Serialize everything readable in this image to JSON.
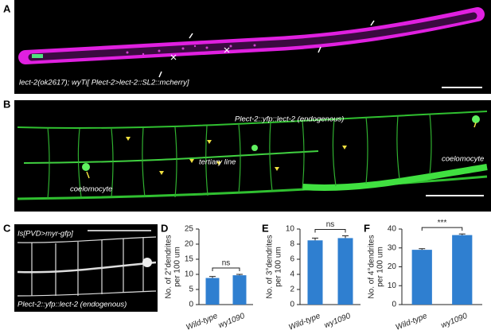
{
  "panels": {
    "A": {
      "label": "A",
      "caption": "lect-2(ok2617); wyTi[ Plect-2>lect-2::SL2::mcherry]"
    },
    "B": {
      "label": "B",
      "caption": "Plect-2::yfp::lect-2 (endogenous)",
      "annotations": [
        "tertiary line",
        "coelomocyte",
        "coelomocyte"
      ]
    },
    "C": {
      "label": "C",
      "header": "Is[PVD>myr-gfp]",
      "caption": "Plect-2::yfp::lect-2 (endogenous)"
    }
  },
  "chart_data": [
    {
      "type": "bar",
      "label": "D",
      "y_label": [
        "No. of 2°dendrites",
        "per 100 um"
      ],
      "categories": [
        "Wild-type",
        "wy1090"
      ],
      "values": [
        8.8,
        9.7
      ],
      "errors": [
        0.5,
        0.3
      ],
      "color": "#2f7fd0",
      "ylim": [
        0,
        25
      ],
      "yticks": [
        0,
        5,
        10,
        15,
        20,
        25
      ],
      "annotation": "ns"
    },
    {
      "type": "bar",
      "label": "E",
      "y_label": [
        "No. of 3°dendrites",
        "per 100 um"
      ],
      "categories": [
        "Wild-type",
        "wy1090"
      ],
      "values": [
        8.5,
        8.8
      ],
      "errors": [
        0.3,
        0.3
      ],
      "color": "#2f7fd0",
      "ylim": [
        0,
        10
      ],
      "yticks": [
        0,
        2,
        4,
        6,
        8,
        10
      ],
      "annotation": "ns"
    },
    {
      "type": "bar",
      "label": "F",
      "y_label": [
        "No. of 4°dendrites",
        "per 100 um"
      ],
      "categories": [
        "Wild-type",
        "wy1090"
      ],
      "values": [
        29,
        36.8
      ],
      "errors": [
        0.6,
        0.6
      ],
      "color": "#2f7fd0",
      "ylim": [
        0,
        40
      ],
      "yticks": [
        0,
        10,
        20,
        30,
        40
      ],
      "annotation": "***"
    }
  ]
}
